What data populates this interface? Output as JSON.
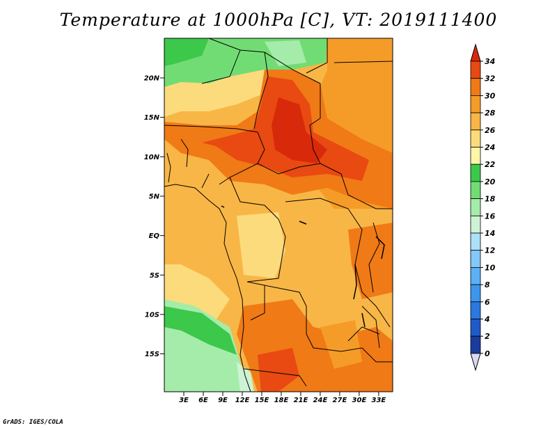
{
  "title": "Temperature at 1000hPa [C], VT: 2019111400",
  "credit": "GrADS: IGES/COLA",
  "colors": {
    "c0": "#111166",
    "c2": "#1a3c9e",
    "c4": "#1f5ac8",
    "c6": "#2a78e0",
    "c8": "#3c96ee",
    "c10": "#5cb0f5",
    "c12": "#85c8f7",
    "c14": "#aee0fa",
    "c16": "#cdf3d4",
    "c18": "#a5ecaa",
    "c20": "#72dc74",
    "c22": "#3cc84b",
    "c24": "#fff6a8",
    "c26": "#fcdb7c",
    "c28": "#f8b646",
    "c30": "#f59c28",
    "c32": "#f07a16",
    "c34": "#e84a12",
    "max": "#d82a0a"
  },
  "chart_data": {
    "type": "heatmap",
    "variable": "Temperature at 1000hPa",
    "units": "C",
    "valid_time": "2019111400",
    "lon_range": [
      0,
      35
    ],
    "lat_range": [
      -20,
      25
    ],
    "x_ticks": [
      "3E",
      "6E",
      "9E",
      "12E",
      "15E",
      "18E",
      "21E",
      "24E",
      "27E",
      "30E",
      "33E"
    ],
    "y_ticks": [
      "20N",
      "15N",
      "10N",
      "5N",
      "EQ",
      "5S",
      "10S",
      "15S"
    ],
    "colorbar": {
      "levels": [
        0,
        2,
        4,
        6,
        8,
        10,
        12,
        14,
        16,
        18,
        20,
        22,
        24,
        26,
        28,
        30,
        32,
        34
      ],
      "labels": [
        "0",
        "2",
        "4",
        "6",
        "8",
        "10",
        "12",
        "14",
        "16",
        "18",
        "20",
        "22",
        "24",
        "26",
        "28",
        "30",
        "32",
        "34"
      ]
    }
  }
}
